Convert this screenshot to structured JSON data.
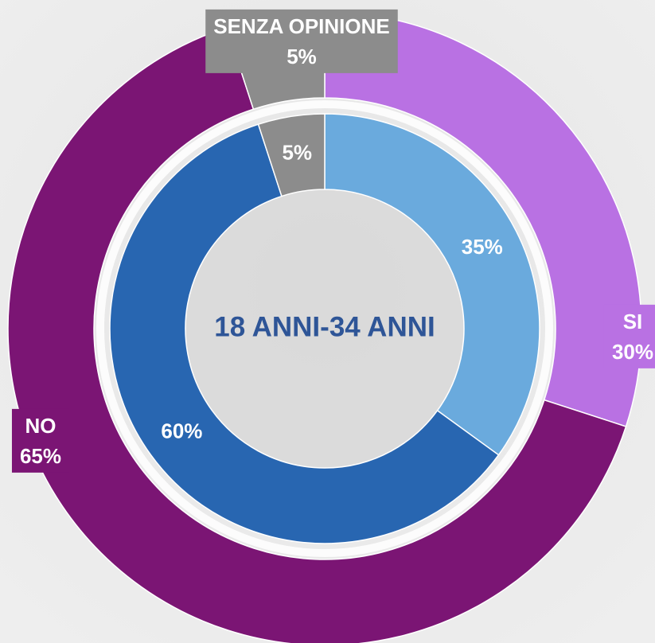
{
  "chart_data": {
    "type": "donut",
    "center_text": "18 ANNI-34 ANNI",
    "categories": [
      "SI",
      "NO",
      "SENZA OPINIONE"
    ],
    "series": [
      {
        "values": [
          30,
          65,
          5
        ],
        "value_labels": [
          "30%",
          "65%",
          "5%"
        ],
        "colors": [
          "#b971e3",
          "#7b1574",
          "#8c8c8c"
        ]
      },
      {
        "values": [
          35,
          60,
          5
        ],
        "value_labels": [
          "35%",
          "60%",
          "5%"
        ],
        "colors": [
          "#6aaadd",
          "#2866b1",
          "#8c8c8c"
        ]
      }
    ]
  }
}
